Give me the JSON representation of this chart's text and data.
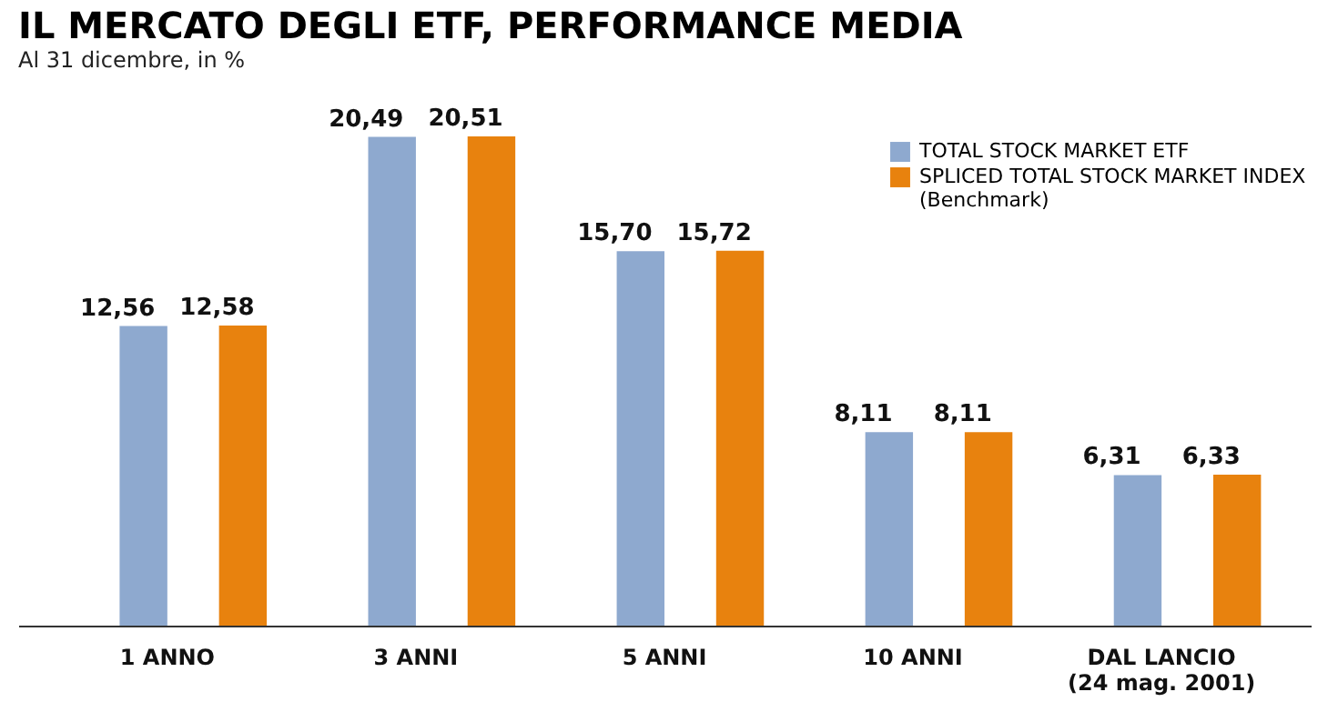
{
  "chart_data": {
    "type": "bar",
    "title": "IL MERCATO DEGLI ETF, PERFORMANCE MEDIA",
    "subtitle": "Al 31 dicembre, in %",
    "categories": [
      "1 ANNO",
      "3 ANNI",
      "5 ANNI",
      "10 ANNI",
      "DAL LANCIO\n(24 mag. 2001)"
    ],
    "series": [
      {
        "name": "TOTAL STOCK MARKET ETF",
        "color": "#8ea9cf",
        "values": [
          12.56,
          20.49,
          15.7,
          8.11,
          6.31
        ],
        "value_labels": [
          "12,56",
          "20,49",
          "15,70",
          "8,11",
          "6,31"
        ]
      },
      {
        "name": "SPLICED TOTAL STOCK MARKET INDEX (Benchmark)",
        "color": "#e8820e",
        "values": [
          12.58,
          20.51,
          15.72,
          8.11,
          6.33
        ],
        "value_labels": [
          "12,58",
          "20,51",
          "15,72",
          "8,11",
          "6,33"
        ]
      }
    ],
    "legend": "top right",
    "grid": false
  }
}
